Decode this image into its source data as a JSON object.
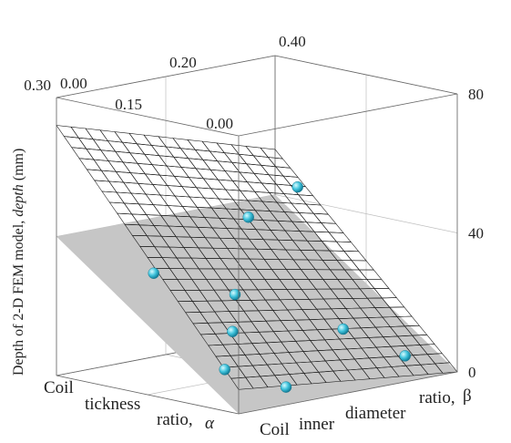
{
  "chart_data": {
    "type": "surface3d",
    "zlabel_prefix": "Depth of 2-D FEM model, ",
    "zlabel_var": "depth",
    "zlabel_unit": " (mm)",
    "xlabel_words": [
      "Coil",
      "tickness",
      "ratio,",
      "α"
    ],
    "ylabel_words": [
      "Coil",
      "inner",
      "diameter",
      "ratio,",
      "β"
    ],
    "xlim": [
      0.0,
      0.3
    ],
    "ylim": [
      0.0,
      0.4
    ],
    "zlim": [
      0,
      80
    ],
    "x_ticks": [
      0.0,
      0.15,
      0.3
    ],
    "x_tick_labels": [
      "0.00",
      "0.15",
      "0.30"
    ],
    "y_ticks": [
      0.0,
      0.2,
      0.4
    ],
    "y_tick_labels": [
      "0.00",
      "0.20",
      "0.40"
    ],
    "z_ticks": [
      0,
      40,
      80
    ],
    "z_tick_labels": [
      "0",
      "40",
      "80"
    ],
    "surface": {
      "formula_points": [
        {
          "x": 0.3,
          "y": 0.0,
          "z": 72
        },
        {
          "x": 0.3,
          "y": 0.4,
          "z": 53
        },
        {
          "x": 0.0,
          "y": 0.0,
          "z": 7
        },
        {
          "x": 0.0,
          "y": 0.4,
          "z": 0
        }
      ],
      "colormap": [
        "#440154",
        "#3b528b",
        "#21918c",
        "#5ec962",
        "#fde725",
        "#fd8d5c"
      ]
    },
    "points": [
      {
        "x": 0.2,
        "y": 0.33,
        "z": 48
      },
      {
        "x": 0.2,
        "y": 0.24,
        "z": 42
      },
      {
        "x": 0.23,
        "y": 0.1,
        "z": 29
      },
      {
        "x": 0.15,
        "y": 0.16,
        "z": 24
      },
      {
        "x": 0.1,
        "y": 0.1,
        "z": 17
      },
      {
        "x": 0.08,
        "y": 0.28,
        "z": 13
      },
      {
        "x": 0.05,
        "y": 0.03,
        "z": 10
      },
      {
        "x": 0.05,
        "y": 0.36,
        "z": 4
      },
      {
        "x": 0.03,
        "y": 0.12,
        "z": 3
      }
    ],
    "grid": true,
    "shadow": true
  }
}
